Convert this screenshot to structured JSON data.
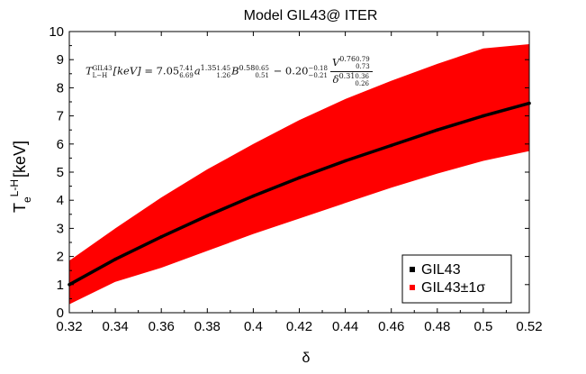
{
  "chart_data": {
    "type": "line",
    "title": "Model GIL43@ ITER",
    "xlabel": "δ",
    "ylabel": "T",
    "ylabel_superscript": "L-H",
    "ylabel_subscript": "e",
    "ylabel_unit": "[keV]",
    "xlim": [
      0.32,
      0.52
    ],
    "ylim": [
      0,
      10
    ],
    "xticks": [
      "0.32",
      "0.34",
      "0.36",
      "0.38",
      "0.4",
      "0.42",
      "0.44",
      "0.46",
      "0.48",
      "0.5",
      "0.52"
    ],
    "yticks": [
      "0",
      "1",
      "2",
      "3",
      "4",
      "5",
      "6",
      "7",
      "8",
      "9",
      "10"
    ],
    "legend_position": "bottom-right",
    "series": [
      {
        "name": "GIL43",
        "color": "#000000",
        "x": [
          0.32,
          0.34,
          0.36,
          0.38,
          0.4,
          0.42,
          0.44,
          0.46,
          0.48,
          0.5,
          0.52
        ],
        "y": [
          1.0,
          1.9,
          2.7,
          3.45,
          4.15,
          4.8,
          5.4,
          5.95,
          6.5,
          7.0,
          7.45
        ]
      },
      {
        "name": "GIL43±1σ",
        "color": "#ff0000",
        "x": [
          0.32,
          0.34,
          0.36,
          0.38,
          0.4,
          0.42,
          0.44,
          0.46,
          0.48,
          0.5,
          0.52
        ],
        "upper": [
          1.85,
          3.0,
          4.1,
          5.1,
          6.0,
          6.85,
          7.6,
          8.25,
          8.85,
          9.4,
          9.55
        ],
        "lower": [
          0.3,
          1.1,
          1.6,
          2.2,
          2.8,
          3.35,
          3.9,
          4.45,
          4.95,
          5.4,
          5.75
        ]
      }
    ],
    "annotation": {
      "lhs": "T",
      "lhs_sup": "GIL43",
      "lhs_sub": "L−H",
      "unit": "[keV]",
      "eq": "=",
      "c1": "7.05",
      "c1_up": "7.41",
      "c1_lo": "6.69",
      "a": "a",
      "a_exp": "1.35",
      "a_up": "1.45",
      "a_lo": "1.26",
      "b": "B",
      "b_exp": "0.58",
      "b_up": "0.65",
      "b_lo": "0.51",
      "minus": "−",
      "c2": "0.20",
      "c2_up": "−0.18",
      "c2_lo": "−0.21",
      "v": "V",
      "v_exp": "0.76",
      "v_up": "0.79",
      "v_lo": "0.73",
      "d": "δ",
      "d_exp": "0.31",
      "d_up": "0.36",
      "d_lo": "0.26"
    }
  }
}
